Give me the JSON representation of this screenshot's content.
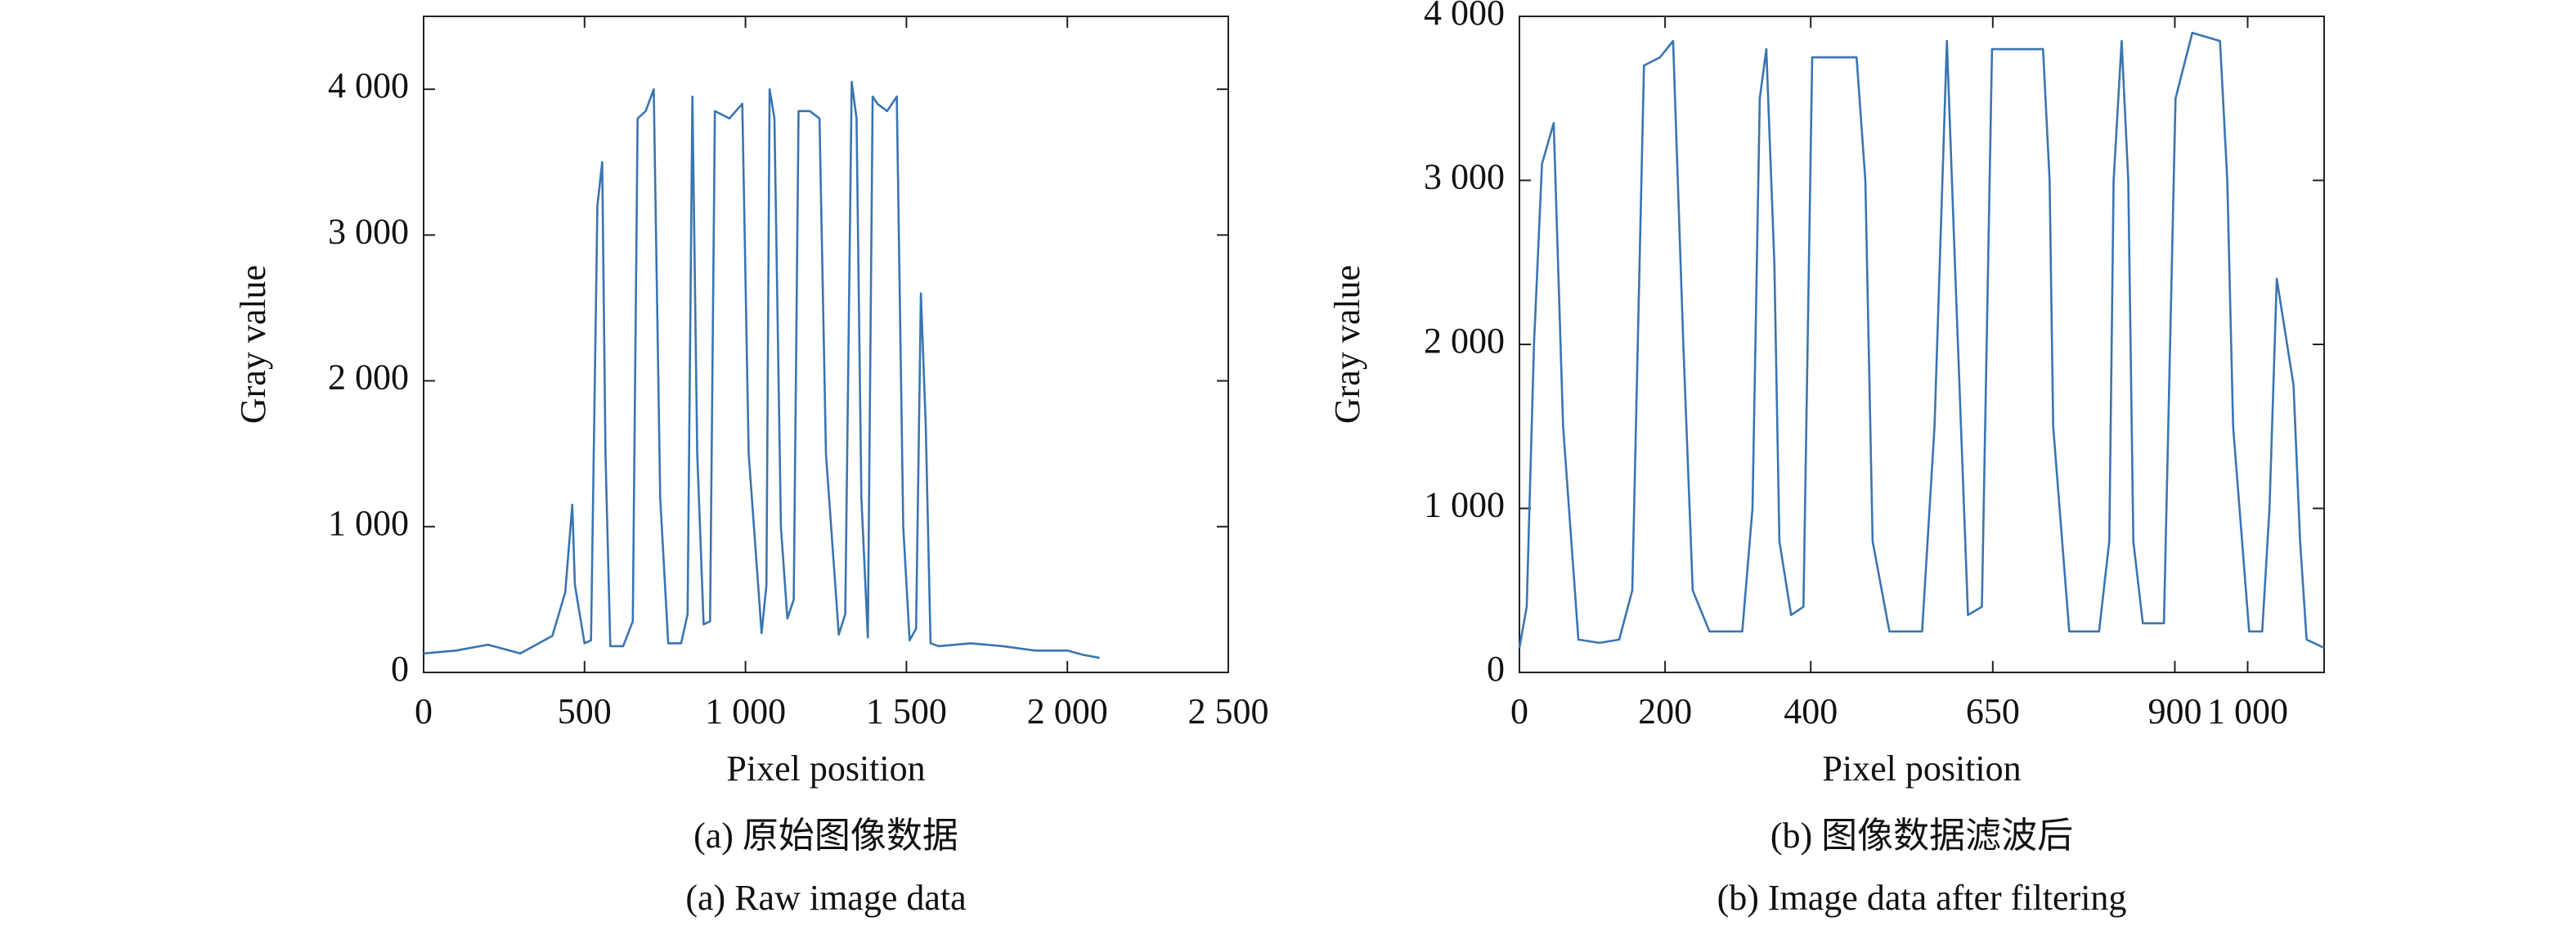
{
  "chart_data": [
    {
      "type": "line",
      "xlabel": "Pixel position",
      "ylabel": "Gray value",
      "caption_zh": "(a) 原始图像数据",
      "caption_en": "(a) Raw image data",
      "color": "#3a75b0",
      "xlim": [
        0,
        2500
      ],
      "ylim": [
        0,
        4500
      ],
      "xticks": [
        0,
        500,
        {
          "value": 1000,
          "label": "1 000"
        },
        {
          "value": 1500,
          "label": "1 500"
        },
        {
          "value": 2000,
          "label": "2 000"
        },
        {
          "value": 2500,
          "label": "2 500"
        }
      ],
      "yticks": [
        0,
        {
          "value": 1000,
          "label": "1 000"
        },
        {
          "value": 2000,
          "label": "2 000"
        },
        {
          "value": 3000,
          "label": "3 000"
        },
        {
          "value": 4000,
          "label": "4 000"
        }
      ],
      "x": [
        0,
        100,
        200,
        300,
        400,
        440,
        462,
        470,
        500,
        520,
        540,
        555,
        565,
        580,
        620,
        650,
        665,
        690,
        715,
        735,
        760,
        800,
        820,
        835,
        850,
        870,
        890,
        905,
        950,
        990,
        1010,
        1050,
        1065,
        1075,
        1090,
        1110,
        1130,
        1150,
        1165,
        1200,
        1230,
        1250,
        1290,
        1310,
        1330,
        1345,
        1360,
        1380,
        1395,
        1410,
        1440,
        1470,
        1490,
        1510,
        1530,
        1545,
        1560,
        1575,
        1600,
        1700,
        1800,
        1900,
        2000,
        2050,
        2100
      ],
      "values": [
        130,
        150,
        190,
        130,
        250,
        550,
        1150,
        600,
        200,
        220,
        3200,
        3500,
        1500,
        180,
        180,
        350,
        3800,
        3850,
        4000,
        1200,
        200,
        200,
        400,
        3950,
        1500,
        330,
        350,
        3850,
        3800,
        3900,
        1500,
        270,
        600,
        4000,
        3800,
        1000,
        370,
        500,
        3850,
        3850,
        3800,
        1500,
        260,
        400,
        4050,
        3800,
        1200,
        240,
        3950,
        3900,
        3850,
        3950,
        1000,
        220,
        300,
        2600,
        1700,
        200,
        180,
        200,
        180,
        150,
        150,
        120,
        100
      ]
    },
    {
      "type": "line",
      "xlabel": "Pixel position",
      "ylabel": "Gray value",
      "caption_zh": "(b) 图像数据滤波后",
      "caption_en": "(b) Image data after filtering",
      "color": "#3a75b0",
      "xlim": [
        0,
        1105
      ],
      "ylim": [
        0,
        4000
      ],
      "xticks": [
        0,
        200,
        400,
        650,
        900,
        {
          "value": 1000,
          "label": "1 000"
        }
      ],
      "yticks": [
        0,
        {
          "value": 1000,
          "label": "1 000"
        },
        {
          "value": 2000,
          "label": "2 000"
        },
        {
          "value": 3000,
          "label": "3 000"
        },
        {
          "value": 4000,
          "label": "4 000"
        }
      ],
      "x": [
        0,
        10,
        20,
        31,
        47,
        60,
        81,
        110,
        137,
        155,
        171,
        193,
        211,
        225,
        238,
        261,
        306,
        320,
        330,
        339,
        350,
        357,
        373,
        390,
        402,
        420,
        463,
        475,
        485,
        508,
        553,
        570,
        587,
        598,
        616,
        635,
        649,
        680,
        719,
        728,
        733,
        755,
        796,
        810,
        816,
        827,
        836,
        843,
        856,
        885,
        901,
        924,
        962,
        972,
        980,
        1002,
        1020,
        1030,
        1040,
        1063,
        1072,
        1081,
        1105
      ],
      "values": [
        150,
        400,
        2000,
        3100,
        3350,
        1500,
        200,
        180,
        200,
        500,
        3700,
        3750,
        3850,
        2000,
        500,
        250,
        250,
        1000,
        3500,
        3800,
        2500,
        800,
        350,
        400,
        3750,
        3750,
        3750,
        3000,
        800,
        250,
        250,
        1500,
        3850,
        2500,
        350,
        400,
        3800,
        3800,
        3800,
        3000,
        1500,
        250,
        250,
        800,
        3000,
        3850,
        3000,
        800,
        300,
        300,
        3500,
        3900,
        3850,
        3000,
        1500,
        250,
        250,
        1000,
        2400,
        1750,
        800,
        200,
        150
      ]
    }
  ]
}
